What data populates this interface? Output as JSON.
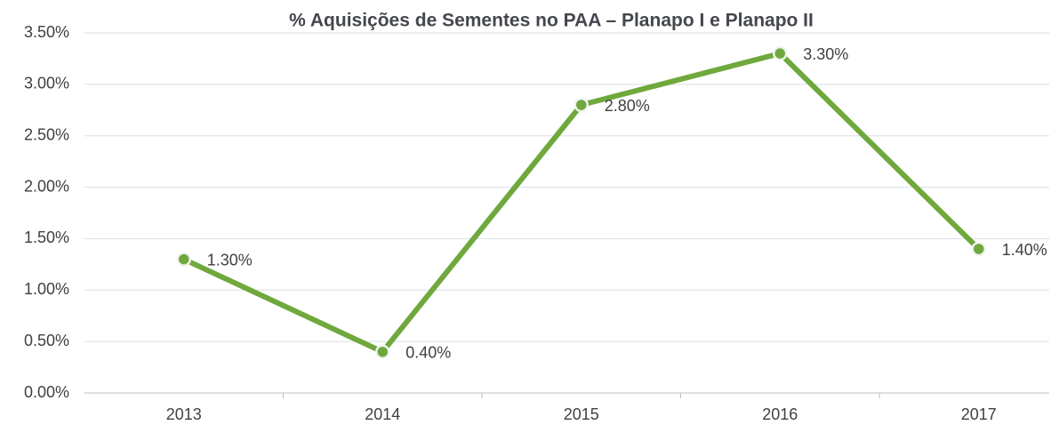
{
  "chart_data": {
    "type": "line",
    "title": "% Aquisições de Sementes no PAA – Planapo I e Planapo II",
    "categories": [
      "2013",
      "2014",
      "2015",
      "2016",
      "2017"
    ],
    "series": [
      {
        "name": "% Aquisições de Sementes",
        "color": "#6fa83c",
        "values": [
          1.3,
          0.4,
          2.8,
          3.3,
          1.4
        ],
        "value_labels": [
          "1.30%",
          "0.40%",
          "2.80%",
          "3.30%",
          "1.40%"
        ]
      }
    ],
    "ylim": [
      0,
      3.5
    ],
    "yticks": [
      {
        "value": 0,
        "label": "0.00%"
      },
      {
        "value": 0.5,
        "label": "0.50%"
      },
      {
        "value": 1,
        "label": "1.00%"
      },
      {
        "value": 1.5,
        "label": "1.50%"
      },
      {
        "value": 2,
        "label": "2.00%"
      },
      {
        "value": 2.5,
        "label": "2.50%"
      },
      {
        "value": 3,
        "label": "3.00%"
      },
      {
        "value": 3.5,
        "label": "3.50%"
      }
    ],
    "grid": true
  }
}
